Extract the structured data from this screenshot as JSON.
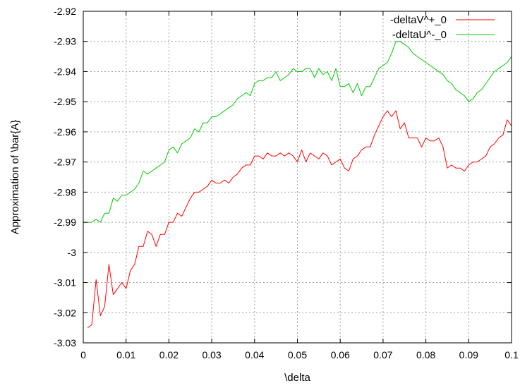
{
  "chart_data": {
    "type": "line",
    "title": "",
    "xlabel": "\\delta",
    "ylabel": "Approximation of \\bar{A}",
    "xlim": [
      0,
      0.1
    ],
    "ylim": [
      -3.03,
      -2.92
    ],
    "grid": true,
    "legend_position": "top-right",
    "x_ticks": [
      0,
      0.01,
      0.02,
      0.03,
      0.04,
      0.05,
      0.06,
      0.07,
      0.08,
      0.09,
      0.1
    ],
    "x_tick_labels": [
      "0",
      "0.01",
      "0.02",
      "0.03",
      "0.04",
      "0.05",
      "0.06",
      "0.07",
      "0.08",
      "0.09",
      "0.1"
    ],
    "y_ticks": [
      -2.92,
      -2.93,
      -2.94,
      -2.95,
      -2.96,
      -2.97,
      -2.98,
      -2.99,
      -3.0,
      -3.01,
      -3.02,
      -3.03
    ],
    "y_tick_labels": [
      "-2.92",
      "-2.93",
      "-2.94",
      "-2.95",
      "-2.96",
      "-2.97",
      "-2.98",
      "-2.99",
      "-3",
      "-3.01",
      "-3.02",
      "-3.03"
    ],
    "series": [
      {
        "name": "-deltaV^+_0",
        "color": "#ff0000",
        "x": [
          0.001,
          0.002,
          0.003,
          0.004,
          0.005,
          0.006,
          0.007,
          0.008,
          0.009,
          0.01,
          0.011,
          0.012,
          0.013,
          0.014,
          0.015,
          0.016,
          0.017,
          0.018,
          0.019,
          0.02,
          0.021,
          0.022,
          0.023,
          0.024,
          0.025,
          0.026,
          0.027,
          0.028,
          0.029,
          0.03,
          0.031,
          0.032,
          0.033,
          0.034,
          0.035,
          0.036,
          0.037,
          0.038,
          0.039,
          0.04,
          0.041,
          0.042,
          0.043,
          0.044,
          0.045,
          0.046,
          0.047,
          0.048,
          0.049,
          0.05,
          0.051,
          0.052,
          0.053,
          0.054,
          0.055,
          0.056,
          0.057,
          0.058,
          0.059,
          0.06,
          0.061,
          0.062,
          0.063,
          0.064,
          0.065,
          0.066,
          0.067,
          0.068,
          0.069,
          0.07,
          0.071,
          0.072,
          0.073,
          0.074,
          0.075,
          0.076,
          0.077,
          0.078,
          0.079,
          0.08,
          0.081,
          0.082,
          0.083,
          0.084,
          0.085,
          0.086,
          0.087,
          0.088,
          0.089,
          0.09,
          0.091,
          0.092,
          0.093,
          0.094,
          0.095,
          0.096,
          0.097,
          0.098,
          0.099,
          0.1
        ],
        "values": [
          -3.025,
          -3.024,
          -3.009,
          -3.021,
          -3.018,
          -3.004,
          -3.014,
          -3.012,
          -3.01,
          -3.012,
          -3.006,
          -3.004,
          -2.998,
          -2.998,
          -2.993,
          -2.994,
          -2.998,
          -2.994,
          -2.994,
          -2.99,
          -2.99,
          -2.987,
          -2.988,
          -2.985,
          -2.982,
          -2.98,
          -2.98,
          -2.979,
          -2.978,
          -2.976,
          -2.977,
          -2.977,
          -2.976,
          -2.977,
          -2.975,
          -2.974,
          -2.972,
          -2.971,
          -2.971,
          -2.968,
          -2.968,
          -2.969,
          -2.967,
          -2.968,
          -2.968,
          -2.967,
          -2.968,
          -2.967,
          -2.968,
          -2.97,
          -2.966,
          -2.97,
          -2.967,
          -2.968,
          -2.969,
          -2.967,
          -2.968,
          -2.971,
          -2.97,
          -2.969,
          -2.972,
          -2.973,
          -2.969,
          -2.968,
          -2.966,
          -2.965,
          -2.965,
          -2.961,
          -2.958,
          -2.955,
          -2.953,
          -2.955,
          -2.953,
          -2.959,
          -2.957,
          -2.962,
          -2.962,
          -2.962,
          -2.965,
          -2.962,
          -2.963,
          -2.963,
          -2.962,
          -2.965,
          -2.972,
          -2.971,
          -2.972,
          -2.972,
          -2.973,
          -2.971,
          -2.97,
          -2.97,
          -2.969,
          -2.968,
          -2.965,
          -2.964,
          -2.962,
          -2.961,
          -2.956,
          -2.958
        ]
      },
      {
        "name": "-deltaU^-_0",
        "color": "#00cc00",
        "x": [
          0.0,
          0.001,
          0.002,
          0.003,
          0.004,
          0.005,
          0.006,
          0.007,
          0.008,
          0.009,
          0.01,
          0.011,
          0.012,
          0.013,
          0.014,
          0.015,
          0.016,
          0.017,
          0.018,
          0.019,
          0.02,
          0.021,
          0.022,
          0.023,
          0.024,
          0.025,
          0.026,
          0.027,
          0.028,
          0.029,
          0.03,
          0.031,
          0.032,
          0.033,
          0.034,
          0.035,
          0.036,
          0.037,
          0.038,
          0.039,
          0.04,
          0.041,
          0.042,
          0.043,
          0.044,
          0.045,
          0.046,
          0.047,
          0.048,
          0.049,
          0.05,
          0.051,
          0.052,
          0.053,
          0.054,
          0.055,
          0.056,
          0.057,
          0.058,
          0.059,
          0.06,
          0.061,
          0.062,
          0.063,
          0.064,
          0.065,
          0.066,
          0.067,
          0.068,
          0.069,
          0.07,
          0.071,
          0.072,
          0.073,
          0.074,
          0.075,
          0.076,
          0.077,
          0.078,
          0.079,
          0.08,
          0.081,
          0.082,
          0.083,
          0.084,
          0.085,
          0.086,
          0.087,
          0.088,
          0.089,
          0.09,
          0.091,
          0.092,
          0.093,
          0.094,
          0.095,
          0.096,
          0.097,
          0.098,
          0.099,
          0.1
        ],
        "values": [
          -2.99,
          -2.99,
          -2.99,
          -2.989,
          -2.99,
          -2.987,
          -2.987,
          -2.982,
          -2.983,
          -2.981,
          -2.981,
          -2.98,
          -2.979,
          -2.977,
          -2.973,
          -2.974,
          -2.973,
          -2.972,
          -2.971,
          -2.97,
          -2.966,
          -2.965,
          -2.967,
          -2.964,
          -2.963,
          -2.962,
          -2.959,
          -2.96,
          -2.957,
          -2.957,
          -2.955,
          -2.955,
          -2.954,
          -2.953,
          -2.952,
          -2.951,
          -2.949,
          -2.948,
          -2.947,
          -2.948,
          -2.944,
          -2.943,
          -2.943,
          -2.942,
          -2.942,
          -2.94,
          -2.943,
          -2.942,
          -2.941,
          -2.939,
          -2.94,
          -2.94,
          -2.939,
          -2.939,
          -2.942,
          -2.939,
          -2.941,
          -2.94,
          -2.943,
          -2.939,
          -2.945,
          -2.945,
          -2.944,
          -2.947,
          -2.944,
          -2.948,
          -2.945,
          -2.945,
          -2.942,
          -2.939,
          -2.938,
          -2.937,
          -2.934,
          -2.93,
          -2.93,
          -2.931,
          -2.932,
          -2.934,
          -2.935,
          -2.936,
          -2.937,
          -2.938,
          -2.939,
          -2.94,
          -2.941,
          -2.943,
          -2.944,
          -2.946,
          -2.947,
          -2.948,
          -2.95,
          -2.949,
          -2.947,
          -2.946,
          -2.944,
          -2.942,
          -2.94,
          -2.939,
          -2.938,
          -2.937,
          -2.935
        ]
      }
    ]
  }
}
